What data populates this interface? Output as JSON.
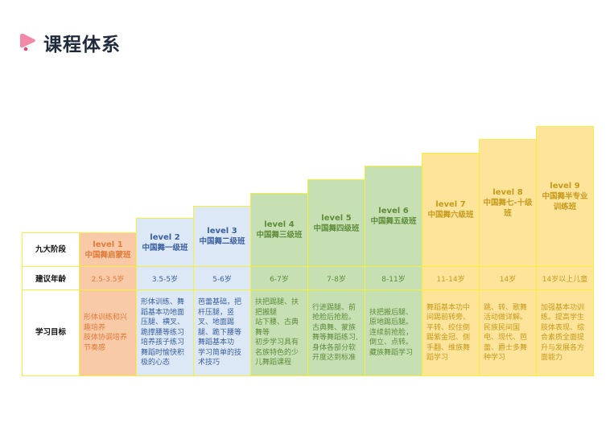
{
  "title": "课程体系",
  "row_labels": {
    "stage": "九大阶段",
    "age": "建议年龄",
    "goal": "学习目标"
  },
  "colors": {
    "border": "#f5f03a",
    "orange_bg": "#f8caa8",
    "orange_text": "#e07b39",
    "blue_bg": "#dce8f5",
    "blue_text": "#3a5fa0",
    "green_bg": "#c6e0b4",
    "green_text": "#5e8c3a",
    "yellow_bg": "#fde49a",
    "yellow_text": "#c69a1c"
  },
  "levels": [
    {
      "level": "level 1",
      "name": "中国舞启蒙班",
      "age": "2.5-3.5岁",
      "goals": [
        "形体训练和兴趣培养",
        "肢体协调培养节奏感"
      ],
      "theme": "orange"
    },
    {
      "level": "level 2",
      "name": "中国舞一级班",
      "age": "3.5-5岁",
      "goals": [
        "形体训练、舞蹈基本功地面压腿、横叉、跪撑腰等练习培养孩子练习舞蹈时愉快积极的心态"
      ],
      "theme": "blue"
    },
    {
      "level": "level 3",
      "name": "中国舞二级班",
      "age": "5-6岁",
      "goals": [
        "芭蕾基础，把杆压腿，竖叉、地面踢腿、跪下腰等舞蹈基本功",
        "学习简单的技术技巧"
      ],
      "theme": "blue"
    },
    {
      "level": "level 4",
      "name": "中国舞三级班",
      "age": "6-7岁",
      "goals": [
        "扶把踢腿、扶把搬腿",
        "站下腰、古典舞等",
        "初步学习具有名族特色的少儿舞蹈课程"
      ],
      "theme": "green"
    },
    {
      "level": "level 5",
      "name": "中国舞四级班",
      "age": "7-8岁",
      "goals": [
        "行进踢腿、前抢脸后抢脸。古典舞、蒙族舞等舞蹈练习,身体各部分软开度达到标准"
      ],
      "theme": "green"
    },
    {
      "level": "level 6",
      "name": "中国舞五级班",
      "age": "8-11岁",
      "goals": [
        "扶把搬后腿、原地踢后腿。连续前抢脸，倒立、点转。藏族舞蹈学习"
      ],
      "theme": "green"
    },
    {
      "level": "level 7",
      "name": "中国舞六级班",
      "age": "11-14岁",
      "goals": [
        "舞蹈基本功中间踢前转旁、平转、绞住倒踢紫金冠、侧手翻、维族舞蹈学习"
      ],
      "theme": "yellow"
    },
    {
      "level": "level 8",
      "name": "中国舞七-十级班",
      "age": "14岁",
      "goals": [
        "跳、转、歌舞活动做详解。民族民间国电、现代、芭蕾、爵士多舞种学习"
      ],
      "theme": "yellow"
    },
    {
      "level": "level 9",
      "name": "中国舞半专业训练班",
      "age": "14岁以上儿童",
      "goals": [
        "加强基本功训练。提高学生肢体表现、综合素质全面提升与发展各方面能力"
      ],
      "theme": "yellow"
    }
  ]
}
